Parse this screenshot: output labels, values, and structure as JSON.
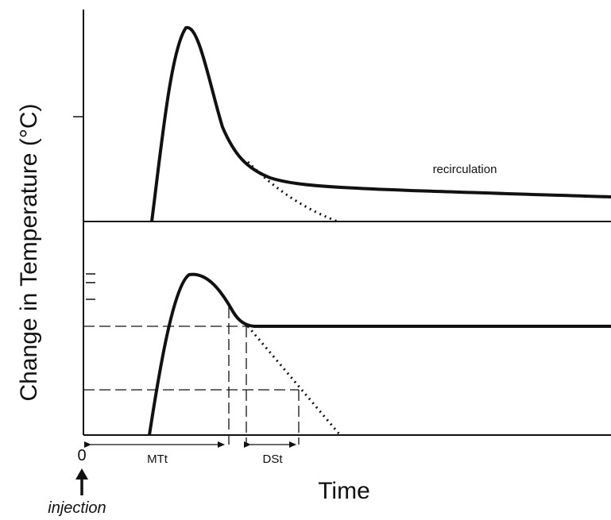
{
  "diagram": {
    "y_axis_label": "Change in Temperature (°C)",
    "x_axis_label": "Time",
    "origin_label": "0",
    "injection_label": "injection",
    "recirculation_label": "recirculation",
    "mtt_label": "MTt",
    "dst_label": "DSt"
  },
  "colors": {
    "ink": "#111111",
    "background": "#ffffff"
  }
}
